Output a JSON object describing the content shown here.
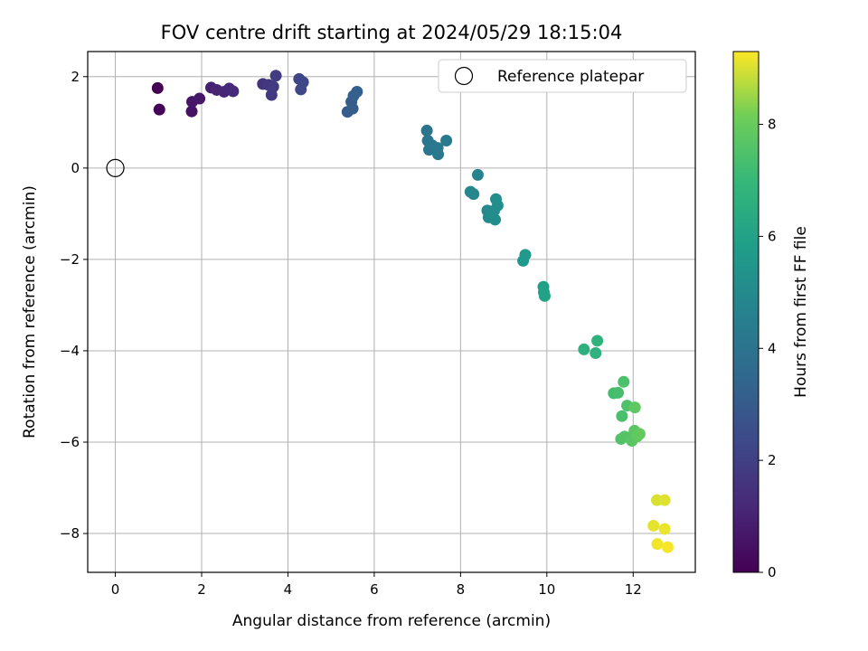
{
  "chart_data": {
    "type": "scatter",
    "title": "FOV centre drift starting at 2024/05/29 18:15:04",
    "xlabel": "Angular distance from reference (arcmin)",
    "ylabel": "Rotation from reference (arcmin)",
    "xlim": [
      -0.64,
      13.44
    ],
    "ylim": [
      -8.85,
      2.55
    ],
    "xticks": [
      0,
      2,
      4,
      6,
      8,
      10,
      12
    ],
    "yticks": [
      -8,
      -6,
      -4,
      -2,
      0,
      2
    ],
    "grid": true,
    "legend": {
      "placement": "top-right",
      "entries": [
        "Reference platepar"
      ]
    },
    "reference_point": {
      "x": 0,
      "y": 0,
      "name": "Reference platepar",
      "marker": "open-circle"
    },
    "colorbar": {
      "label": "Hours from first FF file",
      "range": [
        0,
        9.3
      ],
      "ticks": [
        0,
        2,
        4,
        6,
        8
      ],
      "colormap": "viridis"
    },
    "points": [
      {
        "x": 0.98,
        "y": 1.75,
        "h": 0.0
      },
      {
        "x": 1.02,
        "y": 1.28,
        "h": 0.1
      },
      {
        "x": 1.77,
        "y": 1.24,
        "h": 0.5
      },
      {
        "x": 1.78,
        "y": 1.45,
        "h": 0.6
      },
      {
        "x": 1.95,
        "y": 1.52,
        "h": 0.7
      },
      {
        "x": 2.22,
        "y": 1.76,
        "h": 0.9
      },
      {
        "x": 2.35,
        "y": 1.71,
        "h": 1.0
      },
      {
        "x": 2.52,
        "y": 1.67,
        "h": 1.1
      },
      {
        "x": 2.64,
        "y": 1.74,
        "h": 1.2
      },
      {
        "x": 2.73,
        "y": 1.68,
        "h": 1.25
      },
      {
        "x": 3.42,
        "y": 1.84,
        "h": 1.6
      },
      {
        "x": 3.55,
        "y": 1.82,
        "h": 1.7
      },
      {
        "x": 3.62,
        "y": 1.6,
        "h": 1.75
      },
      {
        "x": 3.66,
        "y": 1.78,
        "h": 1.8
      },
      {
        "x": 3.72,
        "y": 2.02,
        "h": 1.85
      },
      {
        "x": 4.26,
        "y": 1.95,
        "h": 2.2
      },
      {
        "x": 4.3,
        "y": 1.72,
        "h": 2.25
      },
      {
        "x": 4.35,
        "y": 1.88,
        "h": 2.3
      },
      {
        "x": 5.38,
        "y": 1.23,
        "h": 3.0
      },
      {
        "x": 5.47,
        "y": 1.45,
        "h": 3.05
      },
      {
        "x": 5.5,
        "y": 1.3,
        "h": 3.1
      },
      {
        "x": 5.52,
        "y": 1.58,
        "h": 3.15
      },
      {
        "x": 5.6,
        "y": 1.67,
        "h": 3.2
      },
      {
        "x": 7.22,
        "y": 0.82,
        "h": 4.0
      },
      {
        "x": 7.24,
        "y": 0.6,
        "h": 4.05
      },
      {
        "x": 7.27,
        "y": 0.4,
        "h": 4.1
      },
      {
        "x": 7.34,
        "y": 0.5,
        "h": 4.15
      },
      {
        "x": 7.48,
        "y": 0.3,
        "h": 4.2
      },
      {
        "x": 7.47,
        "y": 0.44,
        "h": 4.25
      },
      {
        "x": 7.67,
        "y": 0.6,
        "h": 4.3
      },
      {
        "x": 8.4,
        "y": -0.15,
        "h": 4.7
      },
      {
        "x": 8.23,
        "y": -0.52,
        "h": 4.8
      },
      {
        "x": 8.3,
        "y": -0.57,
        "h": 4.85
      },
      {
        "x": 8.62,
        "y": -0.93,
        "h": 4.9
      },
      {
        "x": 8.65,
        "y": -1.08,
        "h": 4.95
      },
      {
        "x": 8.7,
        "y": -1.0,
        "h": 5.0
      },
      {
        "x": 8.78,
        "y": -0.93,
        "h": 5.05
      },
      {
        "x": 8.8,
        "y": -1.13,
        "h": 5.1
      },
      {
        "x": 8.82,
        "y": -0.68,
        "h": 5.15
      },
      {
        "x": 8.86,
        "y": -0.82,
        "h": 5.2
      },
      {
        "x": 9.45,
        "y": -2.03,
        "h": 5.6
      },
      {
        "x": 9.5,
        "y": -1.9,
        "h": 5.65
      },
      {
        "x": 9.92,
        "y": -2.6,
        "h": 5.9
      },
      {
        "x": 9.93,
        "y": -2.72,
        "h": 5.95
      },
      {
        "x": 9.95,
        "y": -2.8,
        "h": 6.0
      },
      {
        "x": 10.86,
        "y": -3.97,
        "h": 6.6
      },
      {
        "x": 11.13,
        "y": -4.05,
        "h": 6.7
      },
      {
        "x": 11.17,
        "y": -3.78,
        "h": 6.75
      },
      {
        "x": 11.55,
        "y": -4.93,
        "h": 7.3
      },
      {
        "x": 11.65,
        "y": -4.92,
        "h": 7.35
      },
      {
        "x": 11.74,
        "y": -5.43,
        "h": 7.4
      },
      {
        "x": 11.78,
        "y": -4.68,
        "h": 7.45
      },
      {
        "x": 11.86,
        "y": -5.2,
        "h": 7.5
      },
      {
        "x": 11.72,
        "y": -5.93,
        "h": 7.55
      },
      {
        "x": 11.8,
        "y": -5.88,
        "h": 7.6
      },
      {
        "x": 11.9,
        "y": -5.9,
        "h": 7.65
      },
      {
        "x": 11.97,
        "y": -5.97,
        "h": 7.7
      },
      {
        "x": 12.03,
        "y": -5.75,
        "h": 7.75
      },
      {
        "x": 12.04,
        "y": -5.24,
        "h": 7.8
      },
      {
        "x": 12.1,
        "y": -5.87,
        "h": 7.85
      },
      {
        "x": 12.15,
        "y": -5.82,
        "h": 7.9
      },
      {
        "x": 12.55,
        "y": -7.27,
        "h": 9.0
      },
      {
        "x": 12.73,
        "y": -7.27,
        "h": 9.05
      },
      {
        "x": 12.47,
        "y": -7.83,
        "h": 9.1
      },
      {
        "x": 12.73,
        "y": -7.9,
        "h": 9.15
      },
      {
        "x": 12.56,
        "y": -8.23,
        "h": 9.2
      },
      {
        "x": 12.8,
        "y": -8.3,
        "h": 9.25
      }
    ]
  }
}
